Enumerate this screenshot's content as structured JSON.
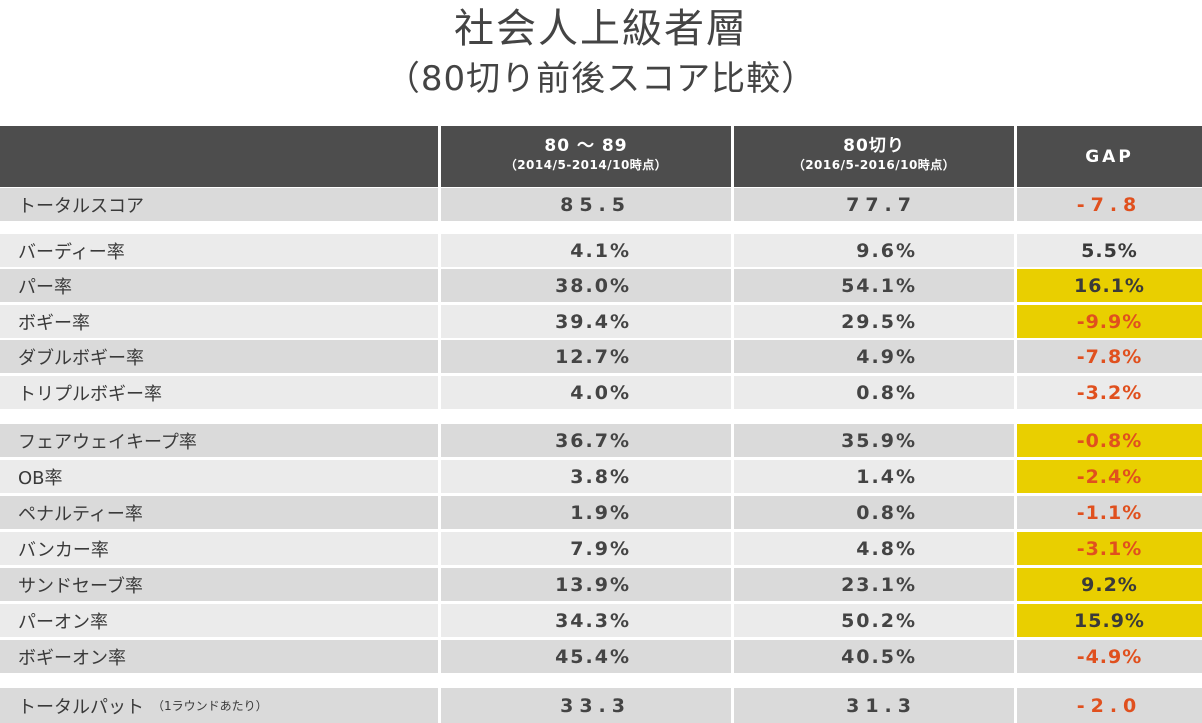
{
  "title": "社会人上級者層",
  "subtitle": "（80切り前後スコア比較）",
  "header": {
    "col_a_line1": "80 〜 89",
    "col_a_line2": "（2014/5-2014/10時点）",
    "col_b_line1": "80切り",
    "col_b_line2": "（2016/5-2016/10時点）",
    "gap": "GAP"
  },
  "rows": {
    "total_score": {
      "label": "トータルスコア",
      "a": "85.5",
      "b": "77.7",
      "gap": "-7.8"
    },
    "birdie": {
      "label": "バーディー率",
      "a": "4.1%",
      "b": "9.6%",
      "gap": "5.5%"
    },
    "par": {
      "label": "パー率",
      "a": "38.0%",
      "b": "54.1%",
      "gap": "16.1%"
    },
    "bogey": {
      "label": "ボギー率",
      "a": "39.4%",
      "b": "29.5%",
      "gap": "-9.9%"
    },
    "double_bogey": {
      "label": "ダブルボギー率",
      "a": "12.7%",
      "b": "4.9%",
      "gap": "-7.8%"
    },
    "triple_bogey": {
      "label": "トリプルボギー率",
      "a": "4.0%",
      "b": "0.8%",
      "gap": "-3.2%"
    },
    "fairway": {
      "label": "フェアウェイキープ率",
      "a": "36.7%",
      "b": "35.9%",
      "gap": "-0.8%"
    },
    "ob": {
      "label": "OB率",
      "a": "3.8%",
      "b": "1.4%",
      "gap": "-2.4%"
    },
    "penalty": {
      "label": "ペナルティー率",
      "a": "1.9%",
      "b": "0.8%",
      "gap": "-1.1%"
    },
    "bunker": {
      "label": "バンカー率",
      "a": "7.9%",
      "b": "4.8%",
      "gap": "-3.1%"
    },
    "sand_save": {
      "label": "サンドセーブ率",
      "a": "13.9%",
      "b": "23.1%",
      "gap": "9.2%"
    },
    "par_on": {
      "label": "パーオン率",
      "a": "34.3%",
      "b": "50.2%",
      "gap": "15.9%"
    },
    "bogey_on": {
      "label": "ボギーオン率",
      "a": "45.4%",
      "b": "40.5%",
      "gap": "-4.9%"
    },
    "total_putt": {
      "label": "トータルパット",
      "note": "（1ラウンドあたり）",
      "a": "33.3",
      "b": "31.3",
      "gap": "-2.0"
    }
  },
  "colors": {
    "header_bg": "#4d4d4d",
    "row_dark": "#dadada",
    "row_light": "#ebebeb",
    "highlight": "#e9cf00",
    "negative": "#e0501e"
  }
}
